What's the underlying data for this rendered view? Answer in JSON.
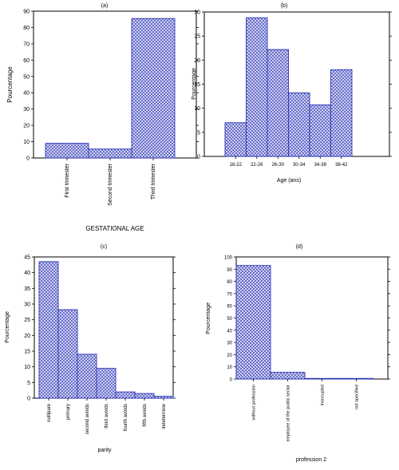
{
  "colors": {
    "bar_fill": "#d9dcf2",
    "bar_hatch": "#2b33b8",
    "axis": "#000000"
  },
  "chart_data": [
    {
      "type": "bar",
      "panel_label": "(a)",
      "title": "",
      "xlabel": "GESTATIONAL AGE",
      "ylabel": "Pourcentage",
      "ylim": [
        0,
        90
      ],
      "yticks": [
        0,
        10,
        20,
        30,
        40,
        50,
        60,
        70,
        80,
        90
      ],
      "categories": [
        "First trimester",
        "Second trimester",
        "Third trimester"
      ],
      "values": [
        9,
        5.5,
        85.5
      ],
      "grid": false
    },
    {
      "type": "bar",
      "panel_label": "(b)",
      "title": "",
      "xlabel": "Age (ans)",
      "ylabel": "Pourcentage",
      "ylim": [
        0,
        30
      ],
      "yticks": [
        0,
        5,
        10,
        15,
        20,
        25,
        30
      ],
      "categories": [
        "18-22",
        "22-26",
        "26-30",
        "30-34",
        "34-38",
        "38-42"
      ],
      "values": [
        7,
        28.8,
        22.2,
        13.2,
        10.7,
        18
      ],
      "grid": false
    },
    {
      "type": "bar",
      "panel_label": "(c)",
      "title": "",
      "xlabel": "parity",
      "ylabel": "Pourcentage",
      "ylim": [
        0,
        45
      ],
      "yticks": [
        0,
        5,
        10,
        15,
        20,
        25,
        30,
        35,
        40,
        45
      ],
      "categories": [
        "nullipare",
        "primary",
        "second avoids",
        "third avoids",
        "fourth avoids",
        "fifth avoids",
        "indetermine"
      ],
      "values": [
        43.5,
        28.2,
        14,
        9.5,
        2,
        1.5,
        0.6
      ],
      "grid": false
    },
    {
      "type": "bar",
      "panel_label": "(d)",
      "title": "",
      "xlabel": "profession 2",
      "ylabel": "Pourcentage",
      "ylim": [
        0,
        100
      ],
      "yticks": [
        0,
        10,
        20,
        30,
        40,
        50,
        60,
        70,
        80,
        90,
        100
      ],
      "categories": [
        "without profession",
        "employee of the public sector",
        "inoccupied",
        "not specified"
      ],
      "values": [
        93,
        5.5,
        0.5,
        0.5
      ],
      "grid": false
    }
  ]
}
